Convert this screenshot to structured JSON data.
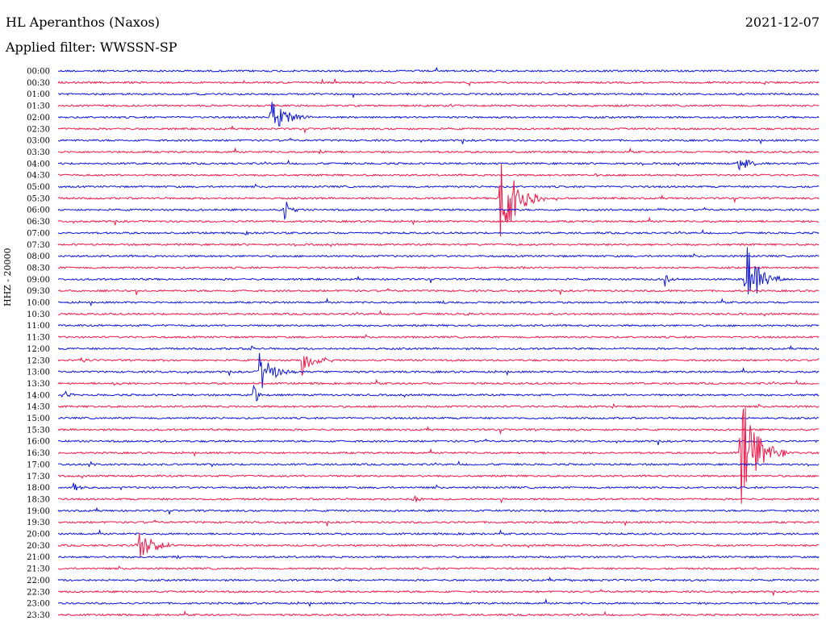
{
  "header": {
    "station": "HL Aperanthos (Naxos)",
    "date": "2021-12-07",
    "filter": "Applied filter: WWSSN-SP",
    "channel_label": "HHZ - 20000"
  },
  "colors": {
    "blue": "#0a14d8",
    "red": "#f01848"
  },
  "chart_data": {
    "type": "line",
    "title": "HL Aperanthos (Naxos)",
    "subtitle": "Applied filter: WWSSN-SP",
    "ylabel": "HHZ - 20000",
    "xlim": [
      0,
      30
    ],
    "y_tick_labels": [
      "00:00",
      "00:30",
      "01:00",
      "01:30",
      "02:00",
      "02:30",
      "03:00",
      "03:30",
      "04:00",
      "04:30",
      "05:00",
      "05:30",
      "06:00",
      "06:30",
      "07:00",
      "07:30",
      "08:00",
      "08:30",
      "09:00",
      "09:30",
      "10:00",
      "10:30",
      "11:00",
      "11:30",
      "12:00",
      "12:30",
      "13:00",
      "13:30",
      "14:00",
      "14:30",
      "15:00",
      "15:30",
      "16:00",
      "16:30",
      "17:00",
      "17:30",
      "18:00",
      "18:30",
      "19:00",
      "19:30",
      "20:00",
      "20:30",
      "21:00",
      "21:30",
      "22:00",
      "22:30",
      "23:00",
      "23:30"
    ],
    "trace_colors": [
      "blue",
      "red"
    ],
    "events": [
      {
        "row": 4,
        "minute": 8.4,
        "amplitude": 22,
        "duration": 1.8
      },
      {
        "row": 7,
        "minute": 10.3,
        "amplitude": 5,
        "duration": 0.4
      },
      {
        "row": 8,
        "minute": 26.8,
        "amplitude": 12,
        "duration": 1.4
      },
      {
        "row": 9,
        "minute": 21.2,
        "amplitude": 3,
        "duration": 0.4
      },
      {
        "row": 11,
        "minute": 17.4,
        "amplitude": 65,
        "duration": 1.8
      },
      {
        "row": 12,
        "minute": 8.9,
        "amplitude": 18,
        "duration": 0.7
      },
      {
        "row": 12,
        "minute": 23.7,
        "amplitude": 4,
        "duration": 0.4
      },
      {
        "row": 14,
        "minute": 7.4,
        "amplitude": 3,
        "duration": 0.4
      },
      {
        "row": 17,
        "minute": 18.3,
        "amplitude": 3,
        "duration": 0.3
      },
      {
        "row": 18,
        "minute": 23.9,
        "amplitude": 10,
        "duration": 0.6
      },
      {
        "row": 18,
        "minute": 27.1,
        "amplitude": 45,
        "duration": 1.5
      },
      {
        "row": 19,
        "minute": 24.1,
        "amplitude": 3,
        "duration": 0.4
      },
      {
        "row": 20,
        "minute": 15.2,
        "amplitude": 4,
        "duration": 0.4
      },
      {
        "row": 21,
        "minute": 16.0,
        "amplitude": 4,
        "duration": 0.4
      },
      {
        "row": 24,
        "minute": 7.6,
        "amplitude": 6,
        "duration": 0.4
      },
      {
        "row": 25,
        "minute": 0.9,
        "amplitude": 5,
        "duration": 0.4
      },
      {
        "row": 25,
        "minute": 4.0,
        "amplitude": 3,
        "duration": 0.4
      },
      {
        "row": 25,
        "minute": 9.6,
        "amplitude": 20,
        "duration": 1.4
      },
      {
        "row": 26,
        "minute": 7.9,
        "amplitude": 26,
        "duration": 1.5
      },
      {
        "row": 27,
        "minute": 2.2,
        "amplitude": 4,
        "duration": 0.4
      },
      {
        "row": 28,
        "minute": 0.2,
        "amplitude": 5,
        "duration": 1.0
      },
      {
        "row": 28,
        "minute": 7.7,
        "amplitude": 15,
        "duration": 0.5
      },
      {
        "row": 29,
        "minute": 21.8,
        "amplitude": 4,
        "duration": 0.6
      },
      {
        "row": 33,
        "minute": 26.9,
        "amplitude": 80,
        "duration": 1.8
      },
      {
        "row": 34,
        "minute": 1.2,
        "amplitude": 5,
        "duration": 0.5
      },
      {
        "row": 34,
        "minute": 24.8,
        "amplitude": 3,
        "duration": 0.3
      },
      {
        "row": 36,
        "minute": 0.6,
        "amplitude": 7,
        "duration": 0.6
      },
      {
        "row": 37,
        "minute": 14.0,
        "amplitude": 8,
        "duration": 0.6
      },
      {
        "row": 41,
        "minute": 3.2,
        "amplitude": 20,
        "duration": 1.6
      },
      {
        "row": 42,
        "minute": 4.5,
        "amplitude": 3,
        "duration": 0.8
      },
      {
        "row": 44,
        "minute": 20.0,
        "amplitude": 3,
        "duration": 0.5
      }
    ]
  }
}
